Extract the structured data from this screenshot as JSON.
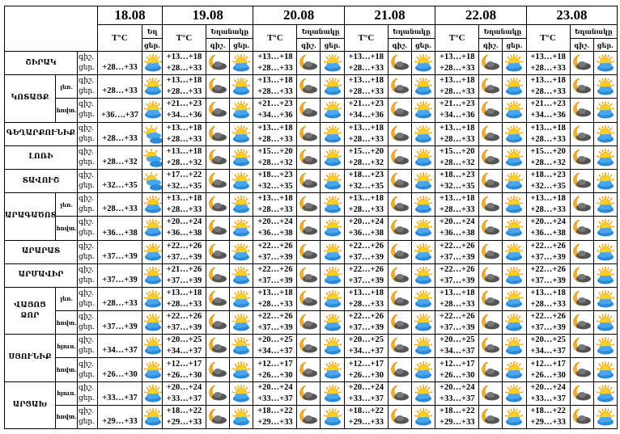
{
  "header": {
    "dates": [
      "18.08",
      "19.08",
      "20.08",
      "21.08",
      "22.08",
      "23.08"
    ],
    "temp_label": "T°C",
    "weather_label": "Եղանակը",
    "weather_label_short": "Եղ",
    "night_label": "գիշ.",
    "day_label": "ցեր."
  },
  "row_labels": {
    "night": "գիշ.",
    "day": "ցեր."
  },
  "colors": {
    "border": "#000000",
    "sun": "#f5b800",
    "cloud_day": "#2a8ad8",
    "cloud_night": "#5a5a5a",
    "moon": "#f0a020"
  },
  "regions": [
    {
      "name": "ՇԻՐԱԿ",
      "subs": [
        {
          "label": "",
          "d18": "+28…+33",
          "icon18": "sun-cloud",
          "days": [
            [
              "+13…+18",
              "+28…+33"
            ],
            [
              "+13…+18",
              "+28…+33"
            ],
            [
              "+13…+18",
              "+28…+33"
            ],
            [
              "+13…+18",
              "+28…+33"
            ],
            [
              "+13…+18",
              "+28…+33"
            ]
          ]
        }
      ]
    },
    {
      "name": "ԿՈՏԱՅՔ",
      "subs": [
        {
          "label": "լեռ.",
          "d18": "+28…+33",
          "icon18": "sun-cloud",
          "days": [
            [
              "+13…+18",
              "+28…+33"
            ],
            [
              "+13…+18",
              "+28…+33"
            ],
            [
              "+13…+18",
              "+28…+33"
            ],
            [
              "+13…+18",
              "+28…+33"
            ],
            [
              "+13…+18",
              "+28…+33"
            ]
          ]
        },
        {
          "label": "հովտ.",
          "d18": "+36….+37",
          "icon18": "sun-cloud",
          "days": [
            [
              "+21…+23",
              "+34…+36"
            ],
            [
              "+21…+23",
              "+34…+36"
            ],
            [
              "+21…+23",
              "+34…+36"
            ],
            [
              "+21…+23",
              "+34…+36"
            ],
            [
              "+21…+23",
              "+34…+36"
            ]
          ]
        }
      ]
    },
    {
      "name": "ԳԵՂԱՐՔՈՒՆԻՔ",
      "subs": [
        {
          "label": "",
          "d18": "+28…+33",
          "icon18": "sun-clouds",
          "days": [
            [
              "+13…+18",
              "+28…+33"
            ],
            [
              "+13…+18",
              "+28…+33"
            ],
            [
              "+13…+18",
              "+28…+33"
            ],
            [
              "+13…+18",
              "+28…+33"
            ],
            [
              "+13…+18",
              "+28…+33"
            ]
          ]
        }
      ]
    },
    {
      "name": "ԼՈՌԻ",
      "subs": [
        {
          "label": "",
          "d18": "+28…+32",
          "icon18": "sun-clouds",
          "days": [
            [
              "+13…+18",
              "+28…+32"
            ],
            [
              "+15…+20",
              "+28…+32"
            ],
            [
              "+15…+20",
              "+28…+32"
            ],
            [
              "+15…+20",
              "+28…+32"
            ],
            [
              "+15…+20",
              "+28…+32"
            ]
          ]
        }
      ]
    },
    {
      "name": "ՏԱՎՈՒՇ",
      "subs": [
        {
          "label": "",
          "d18": "+32…+35",
          "icon18": "sun-clouds",
          "days": [
            [
              "+17…+22",
              "+32…+35"
            ],
            [
              "+18…+23",
              "+32…+35"
            ],
            [
              "+18…+23",
              "+32…+35"
            ],
            [
              "+18…+23",
              "+32…+35"
            ],
            [
              "+18…+23",
              "+32…+35"
            ]
          ]
        }
      ]
    },
    {
      "name": "ԱՐԱԳԱԾՈՏՆ",
      "subs": [
        {
          "label": "լեռ.",
          "d18": "+28…+33",
          "icon18": "sun-cloud",
          "days": [
            [
              "+13…+18",
              "+28…+33"
            ],
            [
              "+13…+18",
              "+28…+33"
            ],
            [
              "+13…+18",
              "+28…+33"
            ],
            [
              "+13…+18",
              "+28…+33"
            ],
            [
              "+13…+18",
              "+28…+33"
            ]
          ]
        },
        {
          "label": "հովտ.",
          "d18": "+36…+38",
          "icon18": "sun-cloud",
          "days": [
            [
              "+20…+24",
              "+36…+38"
            ],
            [
              "+20…+24",
              "+36…+38"
            ],
            [
              "+20…+24",
              "+36…+38"
            ],
            [
              "+20…+24",
              "+36…+38"
            ],
            [
              "+20…+24",
              "+36…+38"
            ]
          ]
        }
      ]
    },
    {
      "name": "ԱՐԱՐԱՏ",
      "subs": [
        {
          "label": "",
          "d18": "+37…+39",
          "icon18": "sun-cloud",
          "days": [
            [
              "+22…+26",
              "+37…+39"
            ],
            [
              "+22…+26",
              "+37…+39"
            ],
            [
              "+22…+26",
              "+37…+39"
            ],
            [
              "+22…+26",
              "+37…+39"
            ],
            [
              "+22…+26",
              "+37…+39"
            ]
          ]
        }
      ]
    },
    {
      "name": "ԱՐՄԱՎԻՐ",
      "subs": [
        {
          "label": "",
          "d18": "+37…+39",
          "icon18": "sun-cloud",
          "days": [
            [
              "+21…+26",
              "+37…+39"
            ],
            [
              "+22…+26",
              "+37…+39"
            ],
            [
              "+22…+26",
              "+37…+39"
            ],
            [
              "+22…+26",
              "+37…+39"
            ],
            [
              "+22…+26",
              "+37…+39"
            ]
          ]
        }
      ]
    },
    {
      "name": "ՎԱՅՈՑ ՁՈՐ",
      "subs": [
        {
          "label": "լեռ.",
          "d18": "+28…+33",
          "icon18": "sun-cloud",
          "days": [
            [
              "+13…+18",
              "+28…+33"
            ],
            [
              "+13…+18",
              "+28…+33"
            ],
            [
              "+13…+18",
              "+28…+33"
            ],
            [
              "+13…+18",
              "+28…+33"
            ],
            [
              "+13…+18",
              "+28…+33"
            ]
          ]
        },
        {
          "label": "հովտ.",
          "d18": "+37…+39",
          "icon18": "sun-cloud",
          "days": [
            [
              "+22…+26",
              "+37…+39"
            ],
            [
              "+22…+26",
              "+37…+39"
            ],
            [
              "+22…+26",
              "+37…+39"
            ],
            [
              "+22…+26",
              "+37…+39"
            ],
            [
              "+22…+26",
              "+37…+39"
            ]
          ]
        }
      ]
    },
    {
      "name": "ՍՅՈՒՆԻՔ",
      "subs": [
        {
          "label": "հյուս.",
          "d18": "+34…+37",
          "icon18": "sun-cloud",
          "days": [
            [
              "+20…+25",
              "+34…+37"
            ],
            [
              "+20…+25",
              "+34…+37"
            ],
            [
              "+20…+25",
              "+34…+37"
            ],
            [
              "+20…+25",
              "+34…+37"
            ],
            [
              "+20…+25",
              "+34…+37"
            ]
          ]
        },
        {
          "label": "հովտ.",
          "d18": "+26…+30",
          "icon18": "sun-cloud",
          "days": [
            [
              "+12…+17",
              "+26…+30"
            ],
            [
              "+12…+17",
              "+26…+30"
            ],
            [
              "+12…+17",
              "+26…+30"
            ],
            [
              "+12…+17",
              "+26…+30"
            ],
            [
              "+12…+17",
              "+26…+30"
            ]
          ]
        }
      ]
    },
    {
      "name": "ԱՐՑԱԽ",
      "subs": [
        {
          "label": "հյուս.",
          "d18": "+33…+37",
          "icon18": "sun-cloud",
          "days": [
            [
              "+20…+24",
              "+33…+37"
            ],
            [
              "+20…+24",
              "+33…+37"
            ],
            [
              "+20…+24",
              "+33…+37"
            ],
            [
              "+20…+24",
              "+33…+37"
            ],
            [
              "+20…+24",
              "+33…+37"
            ]
          ]
        },
        {
          "label": "հովտ.",
          "d18": "+29…+33",
          "icon18": "sun-cloud",
          "days": [
            [
              "+18…+22",
              "+29…+33"
            ],
            [
              "+18…+22",
              "+29…+33"
            ],
            [
              "+18…+22",
              "+29…+33"
            ],
            [
              "+18…+22",
              "+29…+33"
            ],
            [
              "+18…+22",
              "+29…+33"
            ]
          ]
        }
      ]
    }
  ],
  "icons": {
    "night": "moon-cloud",
    "day": "sun-cloud"
  }
}
